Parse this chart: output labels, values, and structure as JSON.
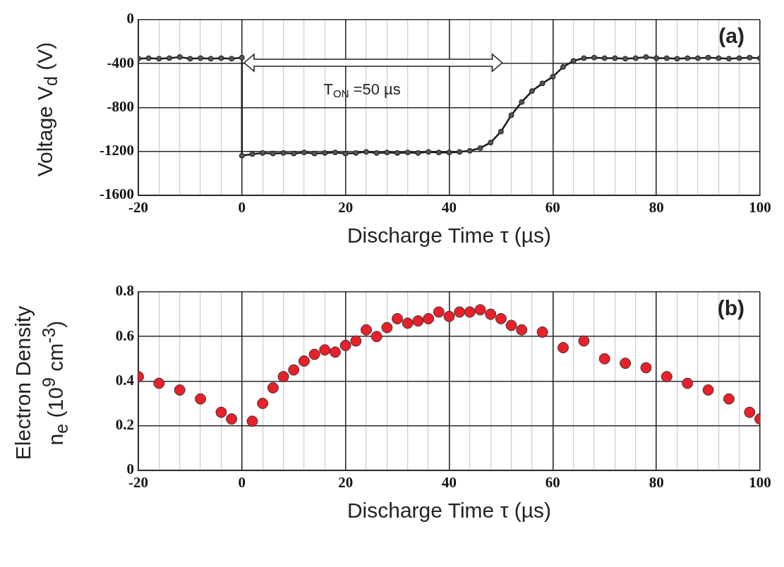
{
  "chart_data": [
    {
      "type": "line",
      "xlabel": "Discharge Time τ  (µs)",
      "ylabel": "Voltage V$_{d}$  (V)",
      "x": [
        -20,
        -18,
        -16,
        -14,
        -12,
        -10,
        -8,
        -6,
        -4,
        -2,
        0,
        0,
        2,
        4,
        6,
        8,
        10,
        12,
        14,
        16,
        18,
        20,
        22,
        24,
        26,
        28,
        30,
        32,
        34,
        36,
        38,
        40,
        42,
        44,
        46,
        48,
        50,
        52,
        54,
        56,
        58,
        60,
        62,
        64,
        66,
        68,
        70,
        72,
        74,
        76,
        78,
        80,
        82,
        84,
        86,
        88,
        90,
        92,
        94,
        96,
        98,
        100
      ],
      "series": [
        {
          "color": "#1a1a1a",
          "values": [
            -355,
            -350,
            -355,
            -350,
            -340,
            -355,
            -350,
            -355,
            -350,
            -355,
            -345,
            -1240,
            -1225,
            -1215,
            -1220,
            -1215,
            -1220,
            -1210,
            -1220,
            -1215,
            -1210,
            -1220,
            -1215,
            -1205,
            -1215,
            -1210,
            -1215,
            -1210,
            -1215,
            -1205,
            -1210,
            -1210,
            -1205,
            -1195,
            -1170,
            -1120,
            -1020,
            -870,
            -750,
            -650,
            -580,
            -520,
            -430,
            -375,
            -350,
            -345,
            -350,
            -350,
            -355,
            -350,
            -340,
            -350,
            -350,
            -355,
            -350,
            -350,
            -345,
            -350,
            -355,
            -350,
            -345,
            -350
          ]
        }
      ],
      "xlim": [
        -20,
        100
      ],
      "xticks": [
        -20,
        {
          "value": -16,
          "label": null
        },
        {
          "value": -12,
          "label": null
        },
        {
          "value": -8,
          "label": null
        },
        {
          "value": -4,
          "label": null
        },
        0,
        {
          "value": 4,
          "label": null
        },
        {
          "value": 8,
          "label": null
        },
        {
          "value": 12,
          "label": null
        },
        {
          "value": 16,
          "label": null
        },
        20,
        {
          "value": 24,
          "label": null
        },
        {
          "value": 28,
          "label": null
        },
        {
          "value": 32,
          "label": null
        },
        {
          "value": 36,
          "label": null
        },
        40,
        {
          "value": 44,
          "label": null
        },
        {
          "value": 48,
          "label": null
        },
        {
          "value": 52,
          "label": null
        },
        {
          "value": 56,
          "label": null
        },
        60,
        {
          "value": 64,
          "label": null
        },
        {
          "value": 68,
          "label": null
        },
        {
          "value": 72,
          "label": null
        },
        {
          "value": 76,
          "label": null
        },
        80,
        {
          "value": 84,
          "label": null
        },
        {
          "value": 88,
          "label": null
        },
        {
          "value": 92,
          "label": null
        },
        {
          "value": 96,
          "label": null
        },
        100
      ],
      "ylim": [
        -1600,
        0
      ],
      "yticks": [
        -1600,
        -1200,
        -800,
        -400,
        0
      ],
      "grid": true,
      "marker": "circle",
      "line_style": "solid",
      "annotations": [
        "(a)",
        "T$_{ON}$ =50 µs"
      ]
    },
    {
      "type": "scatter",
      "xlabel": "Discharge Time τ  (µs)",
      "ylabel": "Electron Density\nn$_{e}$ (10$^{9}$ cm$^{-3}$)",
      "x": [
        -20,
        -16,
        -12,
        -8,
        -4,
        -2,
        2,
        4,
        6,
        8,
        10,
        12,
        14,
        16,
        18,
        20,
        22,
        24,
        26,
        28,
        30,
        32,
        34,
        36,
        38,
        40,
        42,
        44,
        46,
        48,
        50,
        52,
        54,
        58,
        62,
        66,
        70,
        74,
        78,
        82,
        86,
        90,
        94,
        98,
        100
      ],
      "series": [
        {
          "color": "#e8202a",
          "values": [
            0.42,
            0.39,
            0.36,
            0.32,
            0.26,
            0.23,
            0.22,
            0.3,
            0.37,
            0.42,
            0.45,
            0.49,
            0.52,
            0.54,
            0.53,
            0.56,
            0.58,
            0.63,
            0.6,
            0.64,
            0.68,
            0.66,
            0.67,
            0.68,
            0.71,
            0.69,
            0.71,
            0.71,
            0.72,
            0.7,
            0.68,
            0.65,
            0.63,
            0.62,
            0.55,
            0.58,
            0.5,
            0.48,
            0.46,
            0.42,
            0.39,
            0.36,
            0.32,
            0.26,
            0.23
          ]
        }
      ],
      "xlim": [
        -20,
        100
      ],
      "xticks": [
        -20,
        {
          "value": -16,
          "label": null
        },
        {
          "value": -12,
          "label": null
        },
        {
          "value": -8,
          "label": null
        },
        {
          "value": -4,
          "label": null
        },
        0,
        {
          "value": 4,
          "label": null
        },
        {
          "value": 8,
          "label": null
        },
        {
          "value": 12,
          "label": null
        },
        {
          "value": 16,
          "label": null
        },
        20,
        {
          "value": 24,
          "label": null
        },
        {
          "value": 28,
          "label": null
        },
        {
          "value": 32,
          "label": null
        },
        {
          "value": 36,
          "label": null
        },
        40,
        {
          "value": 44,
          "label": null
        },
        {
          "value": 48,
          "label": null
        },
        {
          "value": 52,
          "label": null
        },
        {
          "value": 56,
          "label": null
        },
        60,
        {
          "value": 64,
          "label": null
        },
        {
          "value": 68,
          "label": null
        },
        {
          "value": 72,
          "label": null
        },
        {
          "value": 76,
          "label": null
        },
        80,
        {
          "value": 84,
          "label": null
        },
        {
          "value": 88,
          "label": null
        },
        {
          "value": 92,
          "label": null
        },
        {
          "value": 96,
          "label": null
        },
        100
      ],
      "ylim": [
        0,
        0.8
      ],
      "yticks": [
        0,
        0.2,
        0.4,
        0.6,
        0.8
      ],
      "grid": true,
      "marker": "circle",
      "annotations": [
        "(b)"
      ]
    }
  ]
}
